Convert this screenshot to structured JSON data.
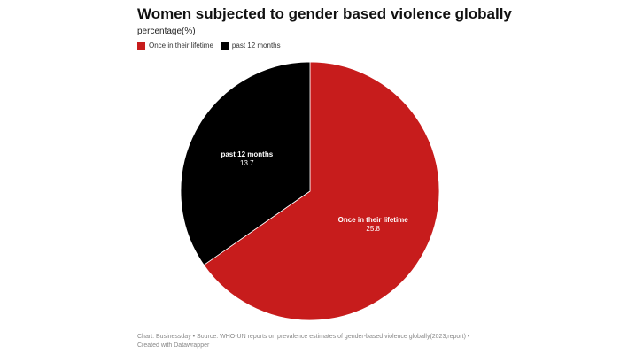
{
  "chart_data": {
    "type": "pie",
    "title": "Women subjected to gender based violence globally",
    "subtitle": "percentage(%)",
    "legend_position": "top-left",
    "slices": [
      {
        "label": "Once in their lifetime",
        "value": 25.8,
        "value_label": "25.8",
        "color": "#c71c1c"
      },
      {
        "label": "past 12 months",
        "value": 13.7,
        "value_label": "13.7",
        "color": "#000000"
      }
    ]
  },
  "footer": "Chart: Businessday • Source: WHO-UN reports on prevalence estimates of gender-based violence globally(2023,report) • Created with Datawrapper"
}
